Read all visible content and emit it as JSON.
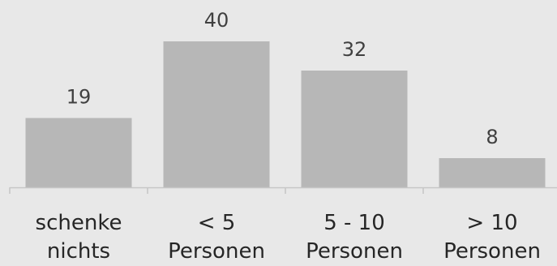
{
  "chart_data": {
    "type": "bar",
    "categories": [
      [
        "schenke",
        "nichts"
      ],
      [
        "< 5",
        "Personen"
      ],
      [
        "5 - 10",
        "Personen"
      ],
      [
        "> 10",
        "Personen"
      ]
    ],
    "values": [
      19,
      40,
      32,
      8
    ],
    "title": "",
    "xlabel": "",
    "ylabel": "",
    "ylim": [
      0,
      40
    ],
    "grid": false,
    "legend": "none",
    "data_labels": true,
    "colors": {
      "bar": "#b7b7b7",
      "axis": "#c6c6c6",
      "background": "#e8e8e8"
    }
  }
}
